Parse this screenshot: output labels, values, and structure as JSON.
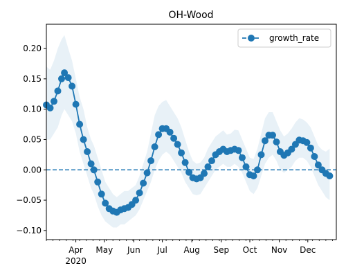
{
  "chart_data": {
    "type": "line",
    "title": "OH-Wood",
    "xlabel": "",
    "ylabel": "",
    "legend_position": "top-right",
    "grid": false,
    "x_range": [
      "2020-03-01",
      "2020-12-31"
    ],
    "ylim": [
      -0.115,
      0.24
    ],
    "y_ticks": [
      0.2,
      0.15,
      0.1,
      0.05,
      0.0,
      -0.05,
      -0.1
    ],
    "y_tick_labels": [
      "0.20",
      "0.15",
      "0.10",
      "0.05",
      "0.00",
      "−0.05",
      "−0.10"
    ],
    "x_ticks": [
      {
        "date": "2020-04-01",
        "label": "Apr",
        "sublabel": "2020"
      },
      {
        "date": "2020-05-01",
        "label": "May",
        "sublabel": ""
      },
      {
        "date": "2020-06-01",
        "label": "Jun",
        "sublabel": ""
      },
      {
        "date": "2020-07-01",
        "label": "Jul",
        "sublabel": ""
      },
      {
        "date": "2020-08-01",
        "label": "Aug",
        "sublabel": ""
      },
      {
        "date": "2020-09-01",
        "label": "Sep",
        "sublabel": ""
      },
      {
        "date": "2020-10-01",
        "label": "Oct",
        "sublabel": ""
      },
      {
        "date": "2020-11-01",
        "label": "Nov",
        "sublabel": ""
      },
      {
        "date": "2020-12-01",
        "label": "Dec",
        "sublabel": ""
      }
    ],
    "reference_line": {
      "y": 0.0,
      "style": "dashed"
    },
    "series": [
      {
        "name": "growth_rate",
        "color": "#1f77b4",
        "band_color": "#1f77b4",
        "band_opacity": 0.1,
        "marker": "circle",
        "points": [
          {
            "date": "2020-03-01",
            "y": 0.107,
            "lo": 0.05,
            "hi": 0.17
          },
          {
            "date": "2020-03-05",
            "y": 0.102,
            "lo": 0.05,
            "hi": 0.165
          },
          {
            "date": "2020-03-09",
            "y": 0.113,
            "lo": 0.06,
            "hi": 0.18
          },
          {
            "date": "2020-03-13",
            "y": 0.13,
            "lo": 0.07,
            "hi": 0.2
          },
          {
            "date": "2020-03-17",
            "y": 0.15,
            "lo": 0.09,
            "hi": 0.215
          },
          {
            "date": "2020-03-20",
            "y": 0.16,
            "lo": 0.1,
            "hi": 0.222
          },
          {
            "date": "2020-03-24",
            "y": 0.152,
            "lo": 0.09,
            "hi": 0.2
          },
          {
            "date": "2020-03-28",
            "y": 0.138,
            "lo": 0.08,
            "hi": 0.18
          },
          {
            "date": "2020-04-01",
            "y": 0.108,
            "lo": 0.06,
            "hi": 0.15
          },
          {
            "date": "2020-04-05",
            "y": 0.075,
            "lo": 0.03,
            "hi": 0.12
          },
          {
            "date": "2020-04-09",
            "y": 0.05,
            "lo": 0.01,
            "hi": 0.1
          },
          {
            "date": "2020-04-13",
            "y": 0.03,
            "lo": -0.01,
            "hi": 0.07
          },
          {
            "date": "2020-04-17",
            "y": 0.01,
            "lo": -0.03,
            "hi": 0.05
          },
          {
            "date": "2020-04-20",
            "y": 0.0,
            "lo": -0.04,
            "hi": 0.04
          },
          {
            "date": "2020-04-24",
            "y": -0.02,
            "lo": -0.06,
            "hi": 0.02
          },
          {
            "date": "2020-04-28",
            "y": -0.04,
            "lo": -0.075,
            "hi": 0.0
          },
          {
            "date": "2020-05-02",
            "y": -0.055,
            "lo": -0.085,
            "hi": -0.02
          },
          {
            "date": "2020-05-06",
            "y": -0.064,
            "lo": -0.09,
            "hi": -0.03
          },
          {
            "date": "2020-05-10",
            "y": -0.068,
            "lo": -0.095,
            "hi": -0.04
          },
          {
            "date": "2020-05-14",
            "y": -0.07,
            "lo": -0.095,
            "hi": -0.045
          },
          {
            "date": "2020-05-18",
            "y": -0.066,
            "lo": -0.09,
            "hi": -0.04
          },
          {
            "date": "2020-05-22",
            "y": -0.064,
            "lo": -0.09,
            "hi": -0.035
          },
          {
            "date": "2020-05-26",
            "y": -0.062,
            "lo": -0.085,
            "hi": -0.035
          },
          {
            "date": "2020-05-30",
            "y": -0.057,
            "lo": -0.08,
            "hi": -0.03
          },
          {
            "date": "2020-06-03",
            "y": -0.05,
            "lo": -0.075,
            "hi": -0.025
          },
          {
            "date": "2020-06-07",
            "y": -0.038,
            "lo": -0.065,
            "hi": -0.01
          },
          {
            "date": "2020-06-11",
            "y": -0.022,
            "lo": -0.05,
            "hi": 0.01
          },
          {
            "date": "2020-06-15",
            "y": -0.005,
            "lo": -0.035,
            "hi": 0.03
          },
          {
            "date": "2020-06-19",
            "y": 0.015,
            "lo": -0.02,
            "hi": 0.06
          },
          {
            "date": "2020-06-23",
            "y": 0.038,
            "lo": 0.0,
            "hi": 0.09
          },
          {
            "date": "2020-06-27",
            "y": 0.058,
            "lo": 0.015,
            "hi": 0.105
          },
          {
            "date": "2020-07-01",
            "y": 0.068,
            "lo": 0.025,
            "hi": 0.112
          },
          {
            "date": "2020-07-05",
            "y": 0.068,
            "lo": 0.03,
            "hi": 0.115
          },
          {
            "date": "2020-07-09",
            "y": 0.062,
            "lo": 0.025,
            "hi": 0.105
          },
          {
            "date": "2020-07-13",
            "y": 0.052,
            "lo": 0.015,
            "hi": 0.095
          },
          {
            "date": "2020-07-17",
            "y": 0.042,
            "lo": 0.005,
            "hi": 0.085
          },
          {
            "date": "2020-07-21",
            "y": 0.028,
            "lo": -0.005,
            "hi": 0.07
          },
          {
            "date": "2020-07-25",
            "y": 0.012,
            "lo": -0.02,
            "hi": 0.05
          },
          {
            "date": "2020-07-29",
            "y": -0.004,
            "lo": -0.03,
            "hi": 0.03
          },
          {
            "date": "2020-08-02",
            "y": -0.013,
            "lo": -0.04,
            "hi": 0.015
          },
          {
            "date": "2020-08-06",
            "y": -0.015,
            "lo": -0.042,
            "hi": 0.01
          },
          {
            "date": "2020-08-10",
            "y": -0.013,
            "lo": -0.04,
            "hi": 0.012
          },
          {
            "date": "2020-08-14",
            "y": -0.006,
            "lo": -0.03,
            "hi": 0.02
          },
          {
            "date": "2020-08-18",
            "y": 0.005,
            "lo": -0.02,
            "hi": 0.035
          },
          {
            "date": "2020-08-22",
            "y": 0.015,
            "lo": -0.01,
            "hi": 0.045
          },
          {
            "date": "2020-08-26",
            "y": 0.025,
            "lo": 0.0,
            "hi": 0.055
          },
          {
            "date": "2020-08-30",
            "y": 0.03,
            "lo": 0.005,
            "hi": 0.06
          },
          {
            "date": "2020-09-03",
            "y": 0.034,
            "lo": 0.01,
            "hi": 0.065
          },
          {
            "date": "2020-09-07",
            "y": 0.03,
            "lo": 0.005,
            "hi": 0.058
          },
          {
            "date": "2020-09-11",
            "y": 0.032,
            "lo": 0.005,
            "hi": 0.06
          },
          {
            "date": "2020-09-15",
            "y": 0.034,
            "lo": 0.01,
            "hi": 0.066
          },
          {
            "date": "2020-09-19",
            "y": 0.032,
            "lo": 0.005,
            "hi": 0.065
          },
          {
            "date": "2020-09-23",
            "y": 0.02,
            "lo": -0.005,
            "hi": 0.05
          },
          {
            "date": "2020-09-27",
            "y": 0.005,
            "lo": -0.02,
            "hi": 0.035
          },
          {
            "date": "2020-10-01",
            "y": -0.008,
            "lo": -0.035,
            "hi": 0.02
          },
          {
            "date": "2020-10-05",
            "y": -0.01,
            "lo": -0.04,
            "hi": 0.018
          },
          {
            "date": "2020-10-09",
            "y": 0.0,
            "lo": -0.03,
            "hi": 0.035
          },
          {
            "date": "2020-10-13",
            "y": 0.025,
            "lo": -0.01,
            "hi": 0.06
          },
          {
            "date": "2020-10-17",
            "y": 0.048,
            "lo": 0.01,
            "hi": 0.085
          },
          {
            "date": "2020-10-21",
            "y": 0.057,
            "lo": 0.02,
            "hi": 0.095
          },
          {
            "date": "2020-10-25",
            "y": 0.057,
            "lo": 0.025,
            "hi": 0.095
          },
          {
            "date": "2020-10-29",
            "y": 0.046,
            "lo": 0.015,
            "hi": 0.08
          },
          {
            "date": "2020-11-02",
            "y": 0.03,
            "lo": 0.0,
            "hi": 0.065
          },
          {
            "date": "2020-11-06",
            "y": 0.024,
            "lo": -0.005,
            "hi": 0.055
          },
          {
            "date": "2020-11-10",
            "y": 0.028,
            "lo": 0.0,
            "hi": 0.06
          },
          {
            "date": "2020-11-14",
            "y": 0.034,
            "lo": 0.005,
            "hi": 0.068
          },
          {
            "date": "2020-11-18",
            "y": 0.042,
            "lo": 0.015,
            "hi": 0.078
          },
          {
            "date": "2020-11-22",
            "y": 0.049,
            "lo": 0.02,
            "hi": 0.085
          },
          {
            "date": "2020-11-26",
            "y": 0.048,
            "lo": 0.02,
            "hi": 0.083
          },
          {
            "date": "2020-11-30",
            "y": 0.045,
            "lo": 0.015,
            "hi": 0.078
          },
          {
            "date": "2020-12-04",
            "y": 0.036,
            "lo": 0.005,
            "hi": 0.07
          },
          {
            "date": "2020-12-08",
            "y": 0.022,
            "lo": -0.01,
            "hi": 0.055
          },
          {
            "date": "2020-12-12",
            "y": 0.008,
            "lo": -0.025,
            "hi": 0.04
          },
          {
            "date": "2020-12-16",
            "y": 0.0,
            "lo": -0.035,
            "hi": 0.033
          },
          {
            "date": "2020-12-20",
            "y": -0.006,
            "lo": -0.045,
            "hi": 0.03
          },
          {
            "date": "2020-12-24",
            "y": -0.01,
            "lo": -0.05,
            "hi": 0.035
          }
        ]
      }
    ]
  }
}
